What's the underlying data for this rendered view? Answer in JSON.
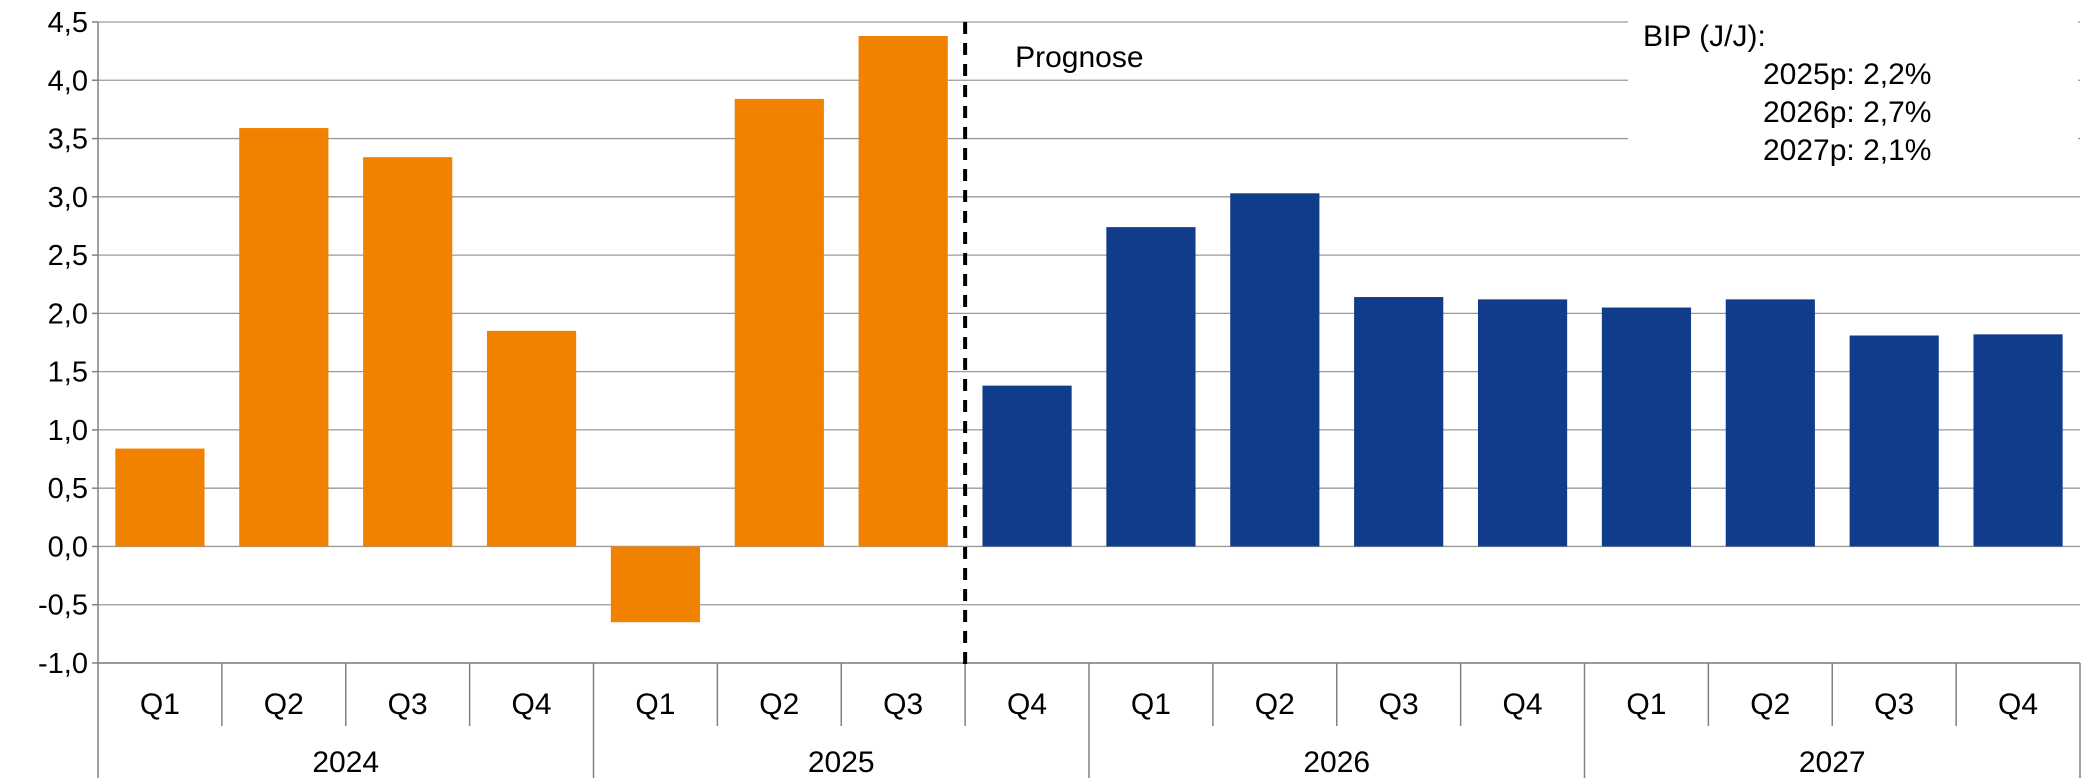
{
  "chart_data": {
    "type": "bar",
    "ylim": [
      -1.0,
      4.5
    ],
    "yticks": [
      "4,5",
      "4,0",
      "3,5",
      "3,0",
      "2,5",
      "2,0",
      "1,5",
      "1,0",
      "0,5",
      "0,0",
      "-0,5",
      "-1,0"
    ],
    "ytick_values": [
      4.5,
      4.0,
      3.5,
      3.0,
      2.5,
      2.0,
      1.5,
      1.0,
      0.5,
      0.0,
      -0.5,
      -1.0
    ],
    "grid": true,
    "categories": [
      "Q1",
      "Q2",
      "Q3",
      "Q4",
      "Q1",
      "Q2",
      "Q3",
      "Q4",
      "Q1",
      "Q2",
      "Q3",
      "Q4",
      "Q1",
      "Q2",
      "Q3",
      "Q4"
    ],
    "groups": [
      {
        "label": "2024",
        "count": 4
      },
      {
        "label": "2025",
        "count": 4
      },
      {
        "label": "2026",
        "count": 4
      },
      {
        "label": "2027",
        "count": 4
      }
    ],
    "values": [
      0.84,
      3.59,
      3.34,
      1.85,
      -0.65,
      3.84,
      4.38,
      1.38,
      2.74,
      3.03,
      2.14,
      2.12,
      2.05,
      2.12,
      1.81,
      1.82
    ],
    "colors": {
      "actual": "#F08200",
      "forecast": "#103C8A"
    },
    "forecast_start_index": 7,
    "forecast_label": "Prognose",
    "annotation": {
      "title": "BIP (J/J):",
      "lines": [
        "2025p: 2,2%",
        "2026p: 2,7%",
        "2027p: 2,1%"
      ]
    }
  }
}
